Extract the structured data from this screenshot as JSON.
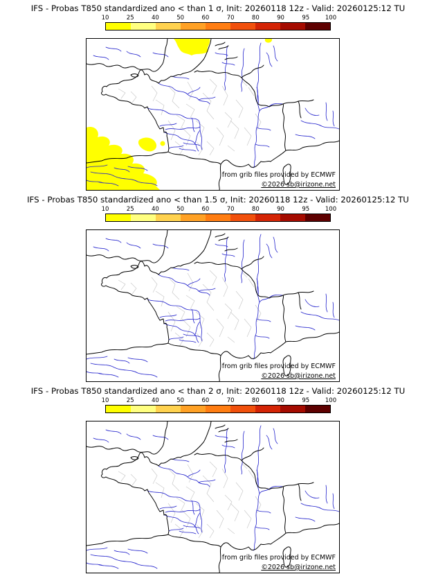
{
  "colors": {
    "border": "#000000",
    "river": "#2222cc",
    "department": "#c9c9c9",
    "highlight": "#ffff00"
  },
  "colorbar": {
    "labels": [
      "10",
      "25",
      "40",
      "50",
      "60",
      "70",
      "80",
      "90",
      "95",
      "100"
    ],
    "colors": [
      "#ffff00",
      "#ffff80",
      "#ffd24f",
      "#ffa125",
      "#ff7d12",
      "#f1500c",
      "#d42405",
      "#a50b00",
      "#5e0000"
    ]
  },
  "panels": [
    {
      "title": "IFS - Probas T850  standardized ano < than 1 σ, Init: 20260118 12z - Valid: 20260125:12 TU",
      "threshold": "1 σ",
      "credit": "from grib files provided by ECMWF",
      "copyright_prefix": "©2026 ",
      "copyright_link": "sb@irizone.net",
      "has_highlight": true
    },
    {
      "title": "IFS - Probas T850  standardized ano < than 1.5 σ, Init: 20260118 12z - Valid: 20260125:12 TU",
      "threshold": "1.5 σ",
      "credit": "from grib files provided by ECMWF",
      "copyright_prefix": "©2026 ",
      "copyright_link": "sb@irizone.net",
      "has_highlight": false
    },
    {
      "title": "IFS - Probas T850  standardized ano < than 2 σ, Init: 20260118 12z - Valid: 20260125:12 TU",
      "threshold": "2 σ",
      "credit": "from grib files provided by ECMWF",
      "copyright_prefix": "©2026 ",
      "copyright_link": "sb@irizone.net",
      "has_highlight": false
    }
  ]
}
